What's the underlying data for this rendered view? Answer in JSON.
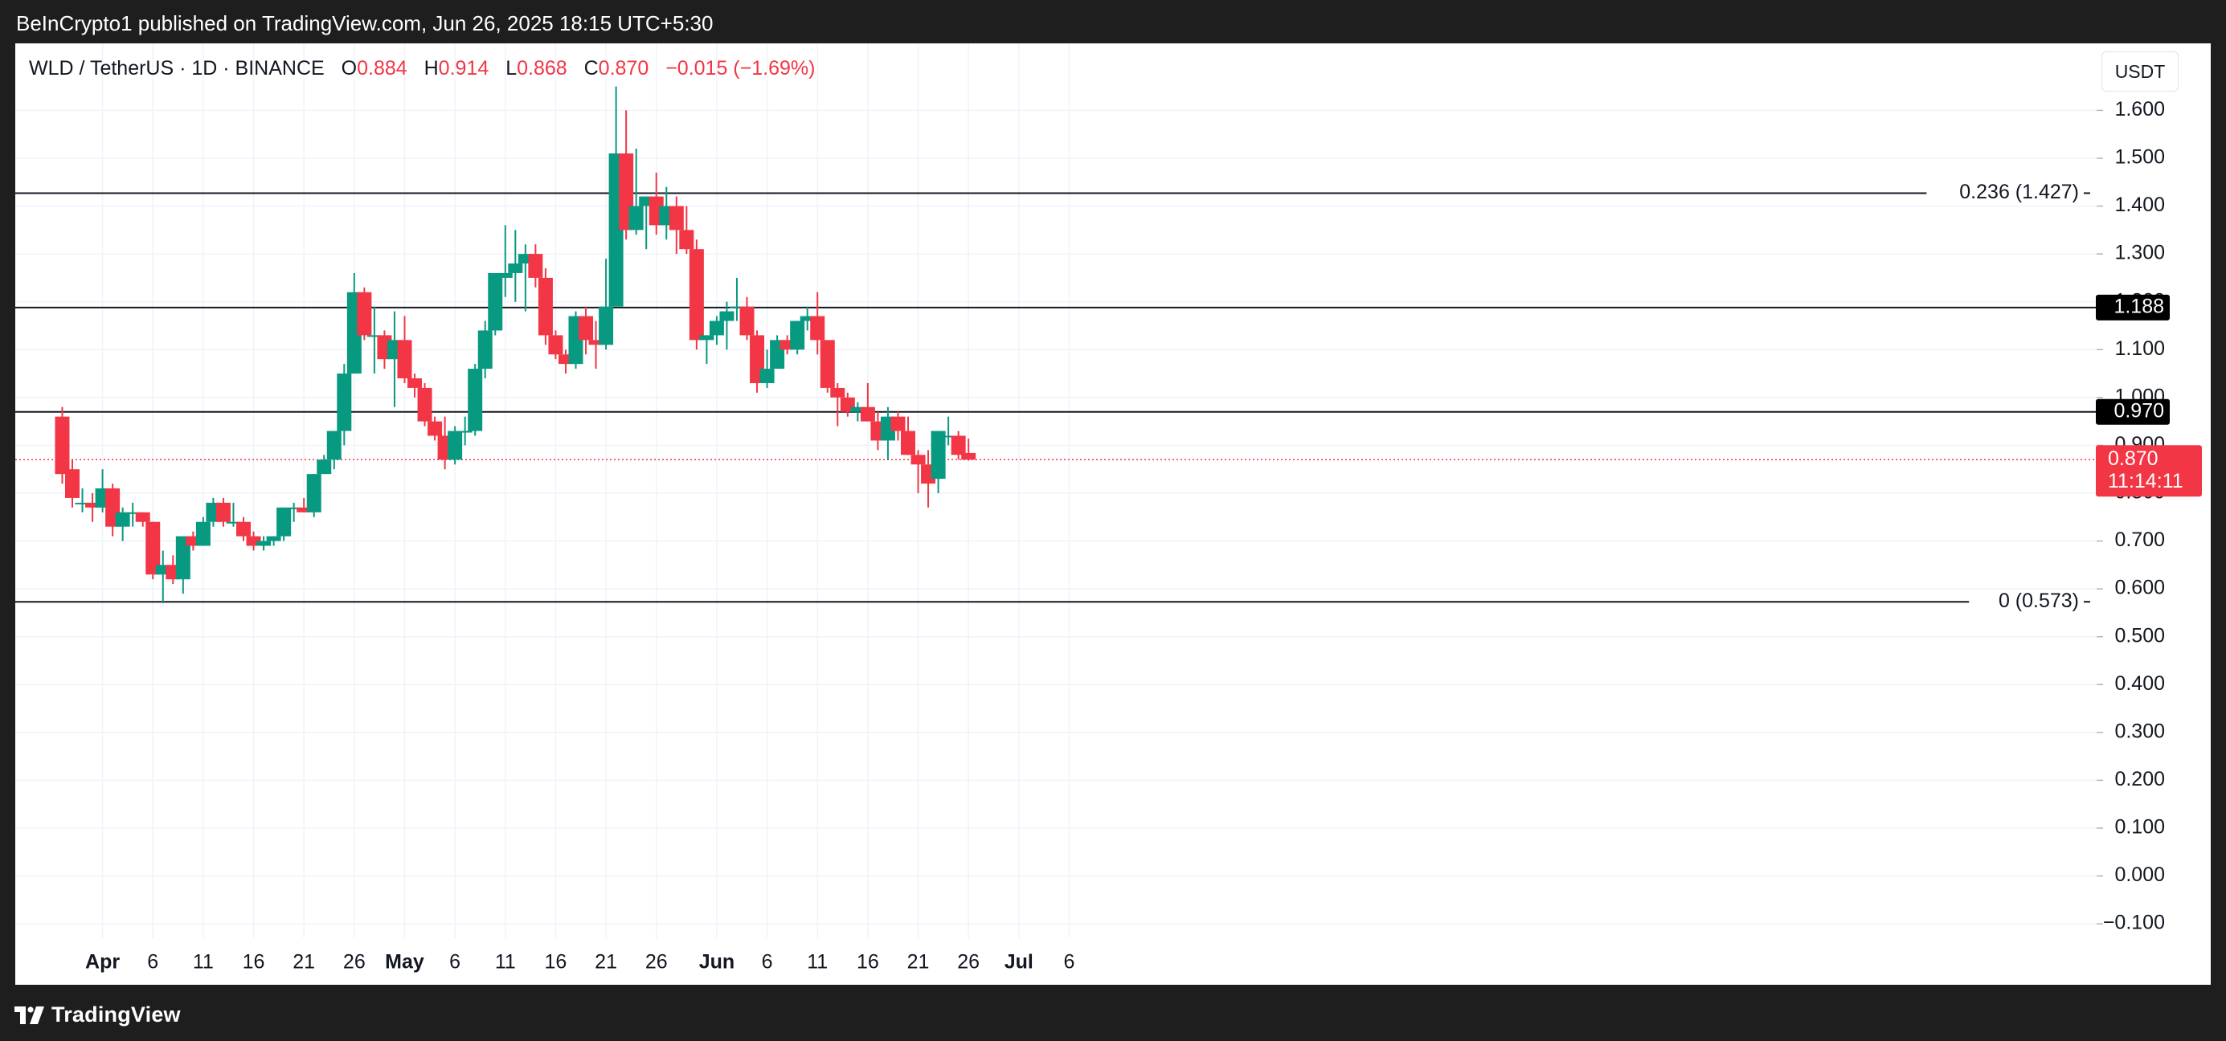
{
  "header": {
    "published": "BeInCrypto1 published on TradingView.com, Jun 26, 2025 18:15 UTC+5:30"
  },
  "legend": {
    "symbol": "WLD / TetherUS · 1D · BINANCE",
    "o_label": "O",
    "o_value": "0.884",
    "h_label": "H",
    "h_value": "0.914",
    "l_label": "L",
    "l_value": "0.868",
    "c_label": "C",
    "c_value": "0.870",
    "change": "−0.015 (−1.69%)"
  },
  "currency": "USDT",
  "footer": {
    "brand": "TradingView"
  },
  "colors": {
    "up": "#089981",
    "down": "#f23645",
    "grid": "#f0f3fa",
    "text": "#131722",
    "bg": "#1e1e1e"
  },
  "chart_data": {
    "type": "candlestick",
    "title": "WLD / TetherUS · 1D · BINANCE",
    "ylim": [
      -0.13,
      1.74
    ],
    "y_ticks": [
      "1.600",
      "1.500",
      "1.400",
      "1.300",
      "1.200",
      "1.100",
      "1.000",
      "0.900",
      "0.800",
      "0.700",
      "0.600",
      "0.500",
      "0.400",
      "0.300",
      "0.200",
      "0.100",
      "0.000",
      "−0.100"
    ],
    "y_tick_values": [
      1.6,
      1.5,
      1.4,
      1.3,
      1.2,
      1.1,
      1.0,
      0.9,
      0.8,
      0.7,
      0.6,
      0.5,
      0.4,
      0.3,
      0.2,
      0.1,
      0.0,
      -0.1
    ],
    "x_ticks": [
      {
        "label": "Apr",
        "day": 3,
        "bold": true
      },
      {
        "label": "6",
        "day": 8
      },
      {
        "label": "11",
        "day": 13
      },
      {
        "label": "16",
        "day": 18
      },
      {
        "label": "21",
        "day": 23
      },
      {
        "label": "26",
        "day": 28
      },
      {
        "label": "May",
        "day": 33,
        "bold": true
      },
      {
        "label": "6",
        "day": 38
      },
      {
        "label": "11",
        "day": 43
      },
      {
        "label": "16",
        "day": 48
      },
      {
        "label": "21",
        "day": 53
      },
      {
        "label": "26",
        "day": 58
      },
      {
        "label": "Jun",
        "day": 64,
        "bold": true
      },
      {
        "label": "6",
        "day": 69
      },
      {
        "label": "11",
        "day": 74
      },
      {
        "label": "16",
        "day": 79
      },
      {
        "label": "21",
        "day": 84
      },
      {
        "label": "26",
        "day": 89
      },
      {
        "label": "Jul",
        "day": 94,
        "bold": true
      },
      {
        "label": "6",
        "day": 99
      }
    ],
    "levels": [
      {
        "value": 1.427,
        "label": "0.236 (1.427)",
        "style": "fib"
      },
      {
        "value": 1.188,
        "label": "1.188",
        "style": "badge"
      },
      {
        "value": 0.97,
        "label": "0.970",
        "style": "badge"
      },
      {
        "value": 0.573,
        "label": "0 (0.573)",
        "style": "fib"
      }
    ],
    "last_price": {
      "value": 0.87,
      "label": "0.870",
      "countdown": "11:14:11"
    },
    "candles": [
      {
        "day": -1,
        "o": 0.96,
        "h": 0.98,
        "c": 0.84,
        "l": 0.82
      },
      {
        "day": 0,
        "o": 0.85,
        "h": 0.87,
        "c": 0.79,
        "l": 0.77
      },
      {
        "day": 1,
        "o": 0.78,
        "h": 0.81,
        "c": 0.78,
        "l": 0.76
      },
      {
        "day": 2,
        "o": 0.78,
        "h": 0.8,
        "c": 0.77,
        "l": 0.74
      },
      {
        "day": 3,
        "o": 0.77,
        "h": 0.85,
        "c": 0.81,
        "l": 0.76
      },
      {
        "day": 4,
        "o": 0.81,
        "h": 0.82,
        "c": 0.73,
        "l": 0.71
      },
      {
        "day": 5,
        "o": 0.73,
        "h": 0.77,
        "c": 0.76,
        "l": 0.7
      },
      {
        "day": 6,
        "o": 0.76,
        "h": 0.78,
        "c": 0.76,
        "l": 0.73
      },
      {
        "day": 7,
        "o": 0.76,
        "h": 0.76,
        "c": 0.74,
        "l": 0.73
      },
      {
        "day": 8,
        "o": 0.74,
        "h": 0.74,
        "c": 0.63,
        "l": 0.62
      },
      {
        "day": 9,
        "o": 0.63,
        "h": 0.68,
        "c": 0.65,
        "l": 0.57
      },
      {
        "day": 10,
        "o": 0.65,
        "h": 0.67,
        "c": 0.62,
        "l": 0.61
      },
      {
        "day": 11,
        "o": 0.62,
        "h": 0.71,
        "c": 0.71,
        "l": 0.59
      },
      {
        "day": 12,
        "o": 0.71,
        "h": 0.72,
        "c": 0.69,
        "l": 0.68
      },
      {
        "day": 13,
        "o": 0.69,
        "h": 0.75,
        "c": 0.74,
        "l": 0.69
      },
      {
        "day": 14,
        "o": 0.74,
        "h": 0.79,
        "c": 0.78,
        "l": 0.73
      },
      {
        "day": 15,
        "o": 0.78,
        "h": 0.79,
        "c": 0.74,
        "l": 0.73
      },
      {
        "day": 16,
        "o": 0.74,
        "h": 0.78,
        "c": 0.74,
        "l": 0.73
      },
      {
        "day": 17,
        "o": 0.74,
        "h": 0.75,
        "c": 0.71,
        "l": 0.7
      },
      {
        "day": 18,
        "o": 0.71,
        "h": 0.72,
        "c": 0.69,
        "l": 0.68
      },
      {
        "day": 19,
        "o": 0.69,
        "h": 0.71,
        "c": 0.7,
        "l": 0.68
      },
      {
        "day": 20,
        "o": 0.7,
        "h": 0.71,
        "c": 0.71,
        "l": 0.69
      },
      {
        "day": 21,
        "o": 0.71,
        "h": 0.77,
        "c": 0.77,
        "l": 0.7
      },
      {
        "day": 22,
        "o": 0.77,
        "h": 0.78,
        "c": 0.77,
        "l": 0.74
      },
      {
        "day": 23,
        "o": 0.77,
        "h": 0.79,
        "c": 0.76,
        "l": 0.76
      },
      {
        "day": 24,
        "o": 0.76,
        "h": 0.84,
        "c": 0.84,
        "l": 0.75
      },
      {
        "day": 25,
        "o": 0.84,
        "h": 0.88,
        "c": 0.87,
        "l": 0.84
      },
      {
        "day": 26,
        "o": 0.87,
        "h": 0.93,
        "c": 0.93,
        "l": 0.85
      },
      {
        "day": 27,
        "o": 0.93,
        "h": 1.07,
        "c": 1.05,
        "l": 0.9
      },
      {
        "day": 28,
        "o": 1.05,
        "h": 1.26,
        "c": 1.22,
        "l": 1.05
      },
      {
        "day": 29,
        "o": 1.22,
        "h": 1.23,
        "c": 1.13,
        "l": 1.12
      },
      {
        "day": 30,
        "o": 1.13,
        "h": 1.19,
        "c": 1.13,
        "l": 1.05
      },
      {
        "day": 31,
        "o": 1.13,
        "h": 1.14,
        "c": 1.08,
        "l": 1.06
      },
      {
        "day": 32,
        "o": 1.08,
        "h": 1.18,
        "c": 1.12,
        "l": 0.98
      },
      {
        "day": 33,
        "o": 1.12,
        "h": 1.17,
        "c": 1.04,
        "l": 1.03
      },
      {
        "day": 34,
        "o": 1.04,
        "h": 1.05,
        "c": 1.02,
        "l": 1.0
      },
      {
        "day": 35,
        "o": 1.02,
        "h": 1.03,
        "c": 0.95,
        "l": 0.94
      },
      {
        "day": 36,
        "o": 0.95,
        "h": 0.96,
        "c": 0.92,
        "l": 0.91
      },
      {
        "day": 37,
        "o": 0.92,
        "h": 0.96,
        "c": 0.87,
        "l": 0.85
      },
      {
        "day": 38,
        "o": 0.87,
        "h": 0.94,
        "c": 0.93,
        "l": 0.86
      },
      {
        "day": 39,
        "o": 0.93,
        "h": 0.96,
        "c": 0.93,
        "l": 0.9
      },
      {
        "day": 40,
        "o": 0.93,
        "h": 1.07,
        "c": 1.06,
        "l": 0.92
      },
      {
        "day": 41,
        "o": 1.06,
        "h": 1.16,
        "c": 1.14,
        "l": 1.04
      },
      {
        "day": 42,
        "o": 1.14,
        "h": 1.26,
        "c": 1.26,
        "l": 1.13
      },
      {
        "day": 43,
        "o": 1.25,
        "h": 1.36,
        "c": 1.26,
        "l": 1.21
      },
      {
        "day": 44,
        "o": 1.26,
        "h": 1.35,
        "c": 1.28,
        "l": 1.2
      },
      {
        "day": 45,
        "o": 1.28,
        "h": 1.32,
        "c": 1.3,
        "l": 1.18
      },
      {
        "day": 46,
        "o": 1.3,
        "h": 1.32,
        "c": 1.25,
        "l": 1.23
      },
      {
        "day": 47,
        "o": 1.25,
        "h": 1.27,
        "c": 1.13,
        "l": 1.11
      },
      {
        "day": 48,
        "o": 1.13,
        "h": 1.14,
        "c": 1.09,
        "l": 1.08
      },
      {
        "day": 49,
        "o": 1.09,
        "h": 1.1,
        "c": 1.07,
        "l": 1.05
      },
      {
        "day": 50,
        "o": 1.07,
        "h": 1.18,
        "c": 1.17,
        "l": 1.06
      },
      {
        "day": 51,
        "o": 1.17,
        "h": 1.19,
        "c": 1.12,
        "l": 1.09
      },
      {
        "day": 52,
        "o": 1.12,
        "h": 1.16,
        "c": 1.11,
        "l": 1.06
      },
      {
        "day": 53,
        "o": 1.11,
        "h": 1.29,
        "c": 1.19,
        "l": 1.1
      },
      {
        "day": 54,
        "o": 1.19,
        "h": 1.65,
        "c": 1.51,
        "l": 1.19
      },
      {
        "day": 55,
        "o": 1.51,
        "h": 1.6,
        "c": 1.35,
        "l": 1.33
      },
      {
        "day": 56,
        "o": 1.35,
        "h": 1.52,
        "c": 1.4,
        "l": 1.34
      },
      {
        "day": 57,
        "o": 1.4,
        "h": 1.42,
        "c": 1.42,
        "l": 1.31
      },
      {
        "day": 58,
        "o": 1.42,
        "h": 1.47,
        "c": 1.36,
        "l": 1.34
      },
      {
        "day": 59,
        "o": 1.36,
        "h": 1.44,
        "c": 1.4,
        "l": 1.33
      },
      {
        "day": 60,
        "o": 1.4,
        "h": 1.42,
        "c": 1.35,
        "l": 1.3
      },
      {
        "day": 61,
        "o": 1.35,
        "h": 1.4,
        "c": 1.31,
        "l": 1.3
      },
      {
        "day": 62,
        "o": 1.31,
        "h": 1.33,
        "c": 1.12,
        "l": 1.1
      },
      {
        "day": 63,
        "o": 1.12,
        "h": 1.13,
        "c": 1.13,
        "l": 1.07
      },
      {
        "day": 64,
        "o": 1.13,
        "h": 1.17,
        "c": 1.16,
        "l": 1.11
      },
      {
        "day": 65,
        "o": 1.16,
        "h": 1.2,
        "c": 1.18,
        "l": 1.1
      },
      {
        "day": 66,
        "o": 1.19,
        "h": 1.25,
        "c": 1.19,
        "l": 1.16
      },
      {
        "day": 67,
        "o": 1.19,
        "h": 1.21,
        "c": 1.13,
        "l": 1.12
      },
      {
        "day": 68,
        "o": 1.13,
        "h": 1.14,
        "c": 1.03,
        "l": 1.01
      },
      {
        "day": 69,
        "o": 1.03,
        "h": 1.1,
        "c": 1.06,
        "l": 1.02
      },
      {
        "day": 70,
        "o": 1.06,
        "h": 1.13,
        "c": 1.12,
        "l": 1.06
      },
      {
        "day": 71,
        "o": 1.12,
        "h": 1.13,
        "c": 1.1,
        "l": 1.09
      },
      {
        "day": 72,
        "o": 1.1,
        "h": 1.16,
        "c": 1.16,
        "l": 1.09
      },
      {
        "day": 73,
        "o": 1.16,
        "h": 1.19,
        "c": 1.17,
        "l": 1.14
      },
      {
        "day": 74,
        "o": 1.17,
        "h": 1.22,
        "c": 1.12,
        "l": 1.09
      },
      {
        "day": 75,
        "o": 1.12,
        "h": 1.12,
        "c": 1.02,
        "l": 1.01
      },
      {
        "day": 76,
        "o": 1.02,
        "h": 1.03,
        "c": 1.0,
        "l": 0.94
      },
      {
        "day": 77,
        "o": 1.0,
        "h": 1.01,
        "c": 0.97,
        "l": 0.96
      },
      {
        "day": 78,
        "o": 0.97,
        "h": 0.99,
        "c": 0.98,
        "l": 0.95
      },
      {
        "day": 79,
        "o": 0.98,
        "h": 1.03,
        "c": 0.95,
        "l": 0.95
      },
      {
        "day": 80,
        "o": 0.95,
        "h": 0.97,
        "c": 0.91,
        "l": 0.89
      },
      {
        "day": 81,
        "o": 0.91,
        "h": 0.98,
        "c": 0.96,
        "l": 0.87
      },
      {
        "day": 82,
        "o": 0.96,
        "h": 0.97,
        "c": 0.93,
        "l": 0.91
      },
      {
        "day": 83,
        "o": 0.93,
        "h": 0.96,
        "c": 0.88,
        "l": 0.88
      },
      {
        "day": 84,
        "o": 0.88,
        "h": 0.89,
        "c": 0.86,
        "l": 0.8
      },
      {
        "day": 85,
        "o": 0.86,
        "h": 0.89,
        "c": 0.82,
        "l": 0.77
      },
      {
        "day": 86,
        "o": 0.83,
        "h": 0.93,
        "c": 0.93,
        "l": 0.8
      },
      {
        "day": 87,
        "o": 0.92,
        "h": 0.96,
        "c": 0.92,
        "l": 0.9
      },
      {
        "day": 88,
        "o": 0.92,
        "h": 0.93,
        "c": 0.88,
        "l": 0.87
      },
      {
        "day": 89,
        "o": 0.884,
        "h": 0.914,
        "c": 0.87,
        "l": 0.868
      }
    ]
  }
}
